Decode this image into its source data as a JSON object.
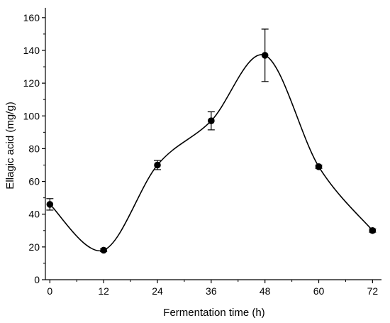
{
  "chart_data": {
    "type": "line",
    "title": "",
    "xlabel": "Fermentation time (h)",
    "ylabel": "Ellagic acid (mg/g)",
    "xlim": [
      -1,
      74
    ],
    "ylim": [
      0,
      166
    ],
    "xticks": [
      0,
      12,
      24,
      36,
      48,
      60,
      72
    ],
    "yticks": [
      0,
      20,
      40,
      60,
      80,
      100,
      120,
      140,
      160
    ],
    "grid": false,
    "legend": "none",
    "line_style": "smooth spline",
    "marker": "filled circle",
    "color": "#000000",
    "series": [
      {
        "x": [
          0,
          12,
          24,
          36,
          48,
          60,
          72
        ],
        "y": [
          46,
          18,
          70,
          97,
          137,
          69,
          30
        ],
        "error": [
          3.5,
          0.8,
          2.8,
          5.5,
          16,
          1.0,
          1.0
        ]
      }
    ]
  }
}
